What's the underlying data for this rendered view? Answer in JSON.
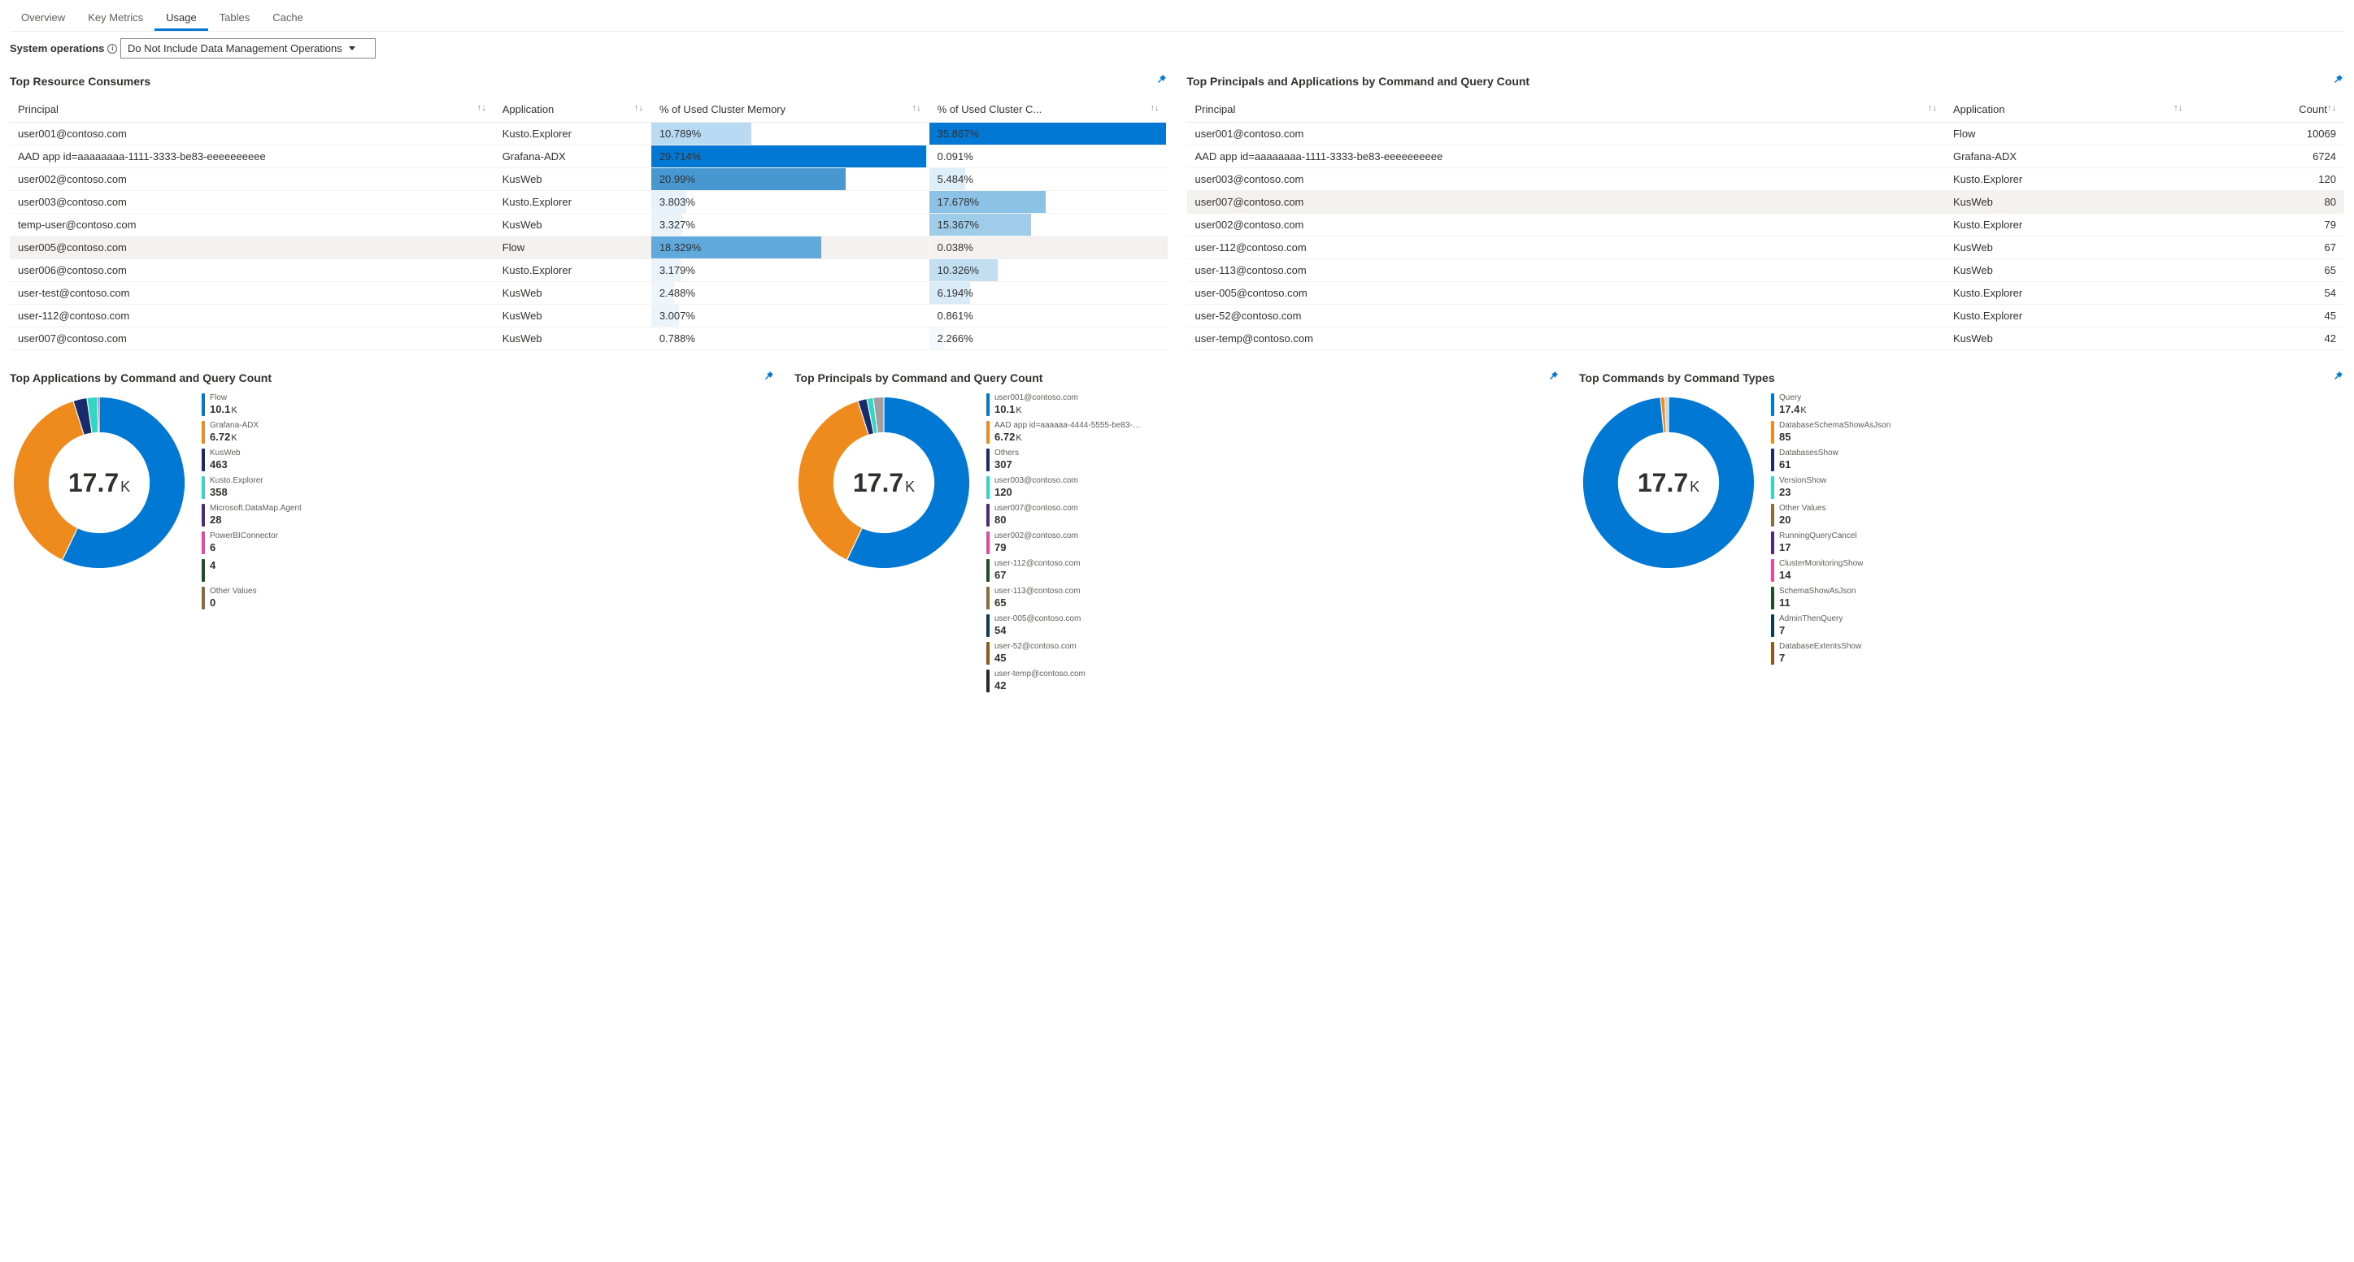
{
  "tabs": [
    "Overview",
    "Key Metrics",
    "Usage",
    "Tables",
    "Cache"
  ],
  "active_tab_index": 2,
  "filter": {
    "label": "System operations",
    "selected": "Do Not Include Data Management Operations"
  },
  "colors": {
    "bar_light": "#b8daf2",
    "bar_mid": "#5fa9db",
    "bar_dark": "#0078d4",
    "row_highlight": "#f3f2f1",
    "pin": "#0078d4"
  },
  "table1": {
    "title": "Top Resource Consumers",
    "columns": [
      "Principal",
      "Application",
      "% of Used Cluster Memory",
      "% of Used Cluster C..."
    ],
    "rows": [
      {
        "principal": "user001@contoso.com",
        "app": "Kusto.Explorer",
        "mem": 10.789,
        "cpu": 35.867,
        "mem_color": "#b8daf2",
        "cpu_color": "#0078d4"
      },
      {
        "principal": "AAD app id=aaaaaaaa-1111-3333-be83-eeeeeeeeee",
        "app": "Grafana-ADX",
        "mem": 29.714,
        "cpu": 0.091,
        "mem_color": "#0078d4",
        "cpu_color": "#ffffff"
      },
      {
        "principal": "user002@contoso.com",
        "app": "KusWeb",
        "mem": 20.99,
        "cpu": 5.484,
        "mem_color": "#4798d0",
        "cpu_color": "#deeef9"
      },
      {
        "principal": "user003@contoso.com",
        "app": "Kusto.Explorer",
        "mem": 3.803,
        "cpu": 17.678,
        "mem_color": "#e8f2fa",
        "cpu_color": "#8cc2e6"
      },
      {
        "principal": "temp-user@contoso.com",
        "app": "KusWeb",
        "mem": 3.327,
        "cpu": 15.367,
        "mem_color": "#eaf3fa",
        "cpu_color": "#9ecce9"
      },
      {
        "principal": "user005@contoso.com",
        "app": "Flow",
        "mem": 18.329,
        "cpu": 0.038,
        "mem_color": "#5fa9db",
        "cpu_color": "#ffffff",
        "highlight": true
      },
      {
        "principal": "user006@contoso.com",
        "app": "Kusto.Explorer",
        "mem": 3.179,
        "cpu": 10.326,
        "mem_color": "#ebf4fb",
        "cpu_color": "#c2dff2"
      },
      {
        "principal": "user-test@contoso.com",
        "app": "KusWeb",
        "mem": 2.488,
        "cpu": 6.194,
        "mem_color": "#eff6fb",
        "cpu_color": "#d9ebf7"
      },
      {
        "principal": "user-112@contoso.com",
        "app": "KusWeb",
        "mem": 3.007,
        "cpu": 0.861,
        "mem_color": "#ecf4fb",
        "cpu_color": "#ffffff"
      },
      {
        "principal": "user007@contoso.com",
        "app": "KusWeb",
        "mem": 0.788,
        "cpu": 2.266,
        "mem_color": "#ffffff",
        "cpu_color": "#f4f9fd"
      }
    ]
  },
  "table2": {
    "title": "Top Principals and Applications by Command and Query Count",
    "columns": [
      "Principal",
      "Application",
      "Count"
    ],
    "rows": [
      {
        "principal": "user001@contoso.com",
        "app": "Flow",
        "count": 10069
      },
      {
        "principal": "AAD app id=aaaaaaaa-1111-3333-be83-eeeeeeeeee",
        "app": "Grafana-ADX",
        "count": 6724
      },
      {
        "principal": "user003@contoso.com",
        "app": "Kusto.Explorer",
        "count": 120
      },
      {
        "principal": "user007@contoso.com",
        "app": "KusWeb",
        "count": 80,
        "highlight": true
      },
      {
        "principal": "user002@contoso.com",
        "app": "Kusto.Explorer",
        "count": 79
      },
      {
        "principal": "user-112@contoso.com",
        "app": "KusWeb",
        "count": 67
      },
      {
        "principal": "user-113@contoso.com",
        "app": "KusWeb",
        "count": 65
      },
      {
        "principal": "user-005@contoso.com",
        "app": "Kusto.Explorer",
        "count": 54
      },
      {
        "principal": "user-52@contoso.com",
        "app": "Kusto.Explorer",
        "count": 45
      },
      {
        "principal": "user-temp@contoso.com",
        "app": "KusWeb",
        "count": 42
      }
    ]
  },
  "chart1": {
    "title": "Top Applications by Command and Query Count",
    "total": "17.7",
    "unit": "K",
    "series": [
      {
        "label": "Flow",
        "value": "10.1",
        "unit": "K",
        "color": "#0078d4"
      },
      {
        "label": "Grafana-ADX",
        "value": "6.72",
        "unit": "K",
        "color": "#ef8b1d"
      },
      {
        "label": "KusWeb",
        "value": "463",
        "unit": "",
        "color": "#1a2b6d"
      },
      {
        "label": "Kusto.Explorer",
        "value": "358",
        "unit": "",
        "color": "#31d6c4"
      },
      {
        "label": "Microsoft.DataMap.Agent",
        "value": "28",
        "unit": "",
        "color": "#4e2a7f"
      },
      {
        "label": "PowerBIConnector",
        "value": "6",
        "unit": "",
        "color": "#e649a0"
      },
      {
        "label": "",
        "value": "4",
        "unit": "",
        "color": "#1d4f2a"
      },
      {
        "label": "Other Values",
        "value": "0",
        "unit": "",
        "color": "#8a6a3f"
      }
    ],
    "slices": [
      {
        "frac": 0.571,
        "color": "#0078d4"
      },
      {
        "frac": 0.38,
        "color": "#ef8b1d"
      },
      {
        "frac": 0.026,
        "color": "#1a2b6d"
      },
      {
        "frac": 0.02,
        "color": "#31d6c4"
      },
      {
        "frac": 0.003,
        "color": "#4e2a7f"
      }
    ]
  },
  "chart2": {
    "title": "Top Principals by Command and Query Count",
    "total": "17.7",
    "unit": "K",
    "series": [
      {
        "label": "user001@contoso.com",
        "value": "10.1",
        "unit": "K",
        "color": "#0078d4"
      },
      {
        "label": "AAD app id=aaaaaa-4444-5555-be83-eeeee...",
        "value": "6.72",
        "unit": "K",
        "color": "#ef8b1d"
      },
      {
        "label": "Others",
        "value": "307",
        "unit": "",
        "color": "#1a2b6d"
      },
      {
        "label": "user003@contoso.com",
        "value": "120",
        "unit": "",
        "color": "#31d6c4"
      },
      {
        "label": "user007@contoso.com",
        "value": "80",
        "unit": "",
        "color": "#4e2a7f"
      },
      {
        "label": "user002@contoso.com",
        "value": "79",
        "unit": "",
        "color": "#e649a0"
      },
      {
        "label": "user-112@contoso.com",
        "value": "67",
        "unit": "",
        "color": "#1d4f2a"
      },
      {
        "label": "user-113@contoso.com",
        "value": "65",
        "unit": "",
        "color": "#8a6a3f"
      },
      {
        "label": "user-005@contoso.com",
        "value": "54",
        "unit": "",
        "color": "#0b3a5c"
      },
      {
        "label": "user-52@contoso.com",
        "value": "45",
        "unit": "",
        "color": "#8c5a1a"
      },
      {
        "label": "user-temp@contoso.com",
        "value": "42",
        "unit": "",
        "color": "#2a2a2a"
      }
    ],
    "slices": [
      {
        "frac": 0.571,
        "color": "#0078d4"
      },
      {
        "frac": 0.38,
        "color": "#ef8b1d"
      },
      {
        "frac": 0.017,
        "color": "#1a2b6d"
      },
      {
        "frac": 0.012,
        "color": "#31d6c4"
      },
      {
        "frac": 0.02,
        "color": "#a0a0a0"
      }
    ]
  },
  "chart3": {
    "title": "Top Commands by Command Types",
    "total": "17.7",
    "unit": "K",
    "series": [
      {
        "label": "Query",
        "value": "17.4",
        "unit": "K",
        "color": "#0078d4"
      },
      {
        "label": "DatabaseSchemaShowAsJson",
        "value": "85",
        "unit": "",
        "color": "#ef8b1d"
      },
      {
        "label": "DatabasesShow",
        "value": "61",
        "unit": "",
        "color": "#1a2b6d"
      },
      {
        "label": "VersionShow",
        "value": "23",
        "unit": "",
        "color": "#31d6c4"
      },
      {
        "label": "Other Values",
        "value": "20",
        "unit": "",
        "color": "#8a6a3f"
      },
      {
        "label": "RunningQueryCancel",
        "value": "17",
        "unit": "",
        "color": "#4e2a7f"
      },
      {
        "label": "ClusterMonitoringShow",
        "value": "14",
        "unit": "",
        "color": "#e649a0"
      },
      {
        "label": "SchemaShowAsJson",
        "value": "11",
        "unit": "",
        "color": "#1d4f2a"
      },
      {
        "label": "AdminThenQuery",
        "value": "7",
        "unit": "",
        "color": "#0b3a5c"
      },
      {
        "label": "DatabaseExtentsShow",
        "value": "7",
        "unit": "",
        "color": "#8c5a1a"
      }
    ],
    "slices": [
      {
        "frac": 0.985,
        "color": "#0078d4"
      },
      {
        "frac": 0.008,
        "color": "#ef8b1d"
      },
      {
        "frac": 0.007,
        "color": "#d0d0d0"
      }
    ]
  }
}
